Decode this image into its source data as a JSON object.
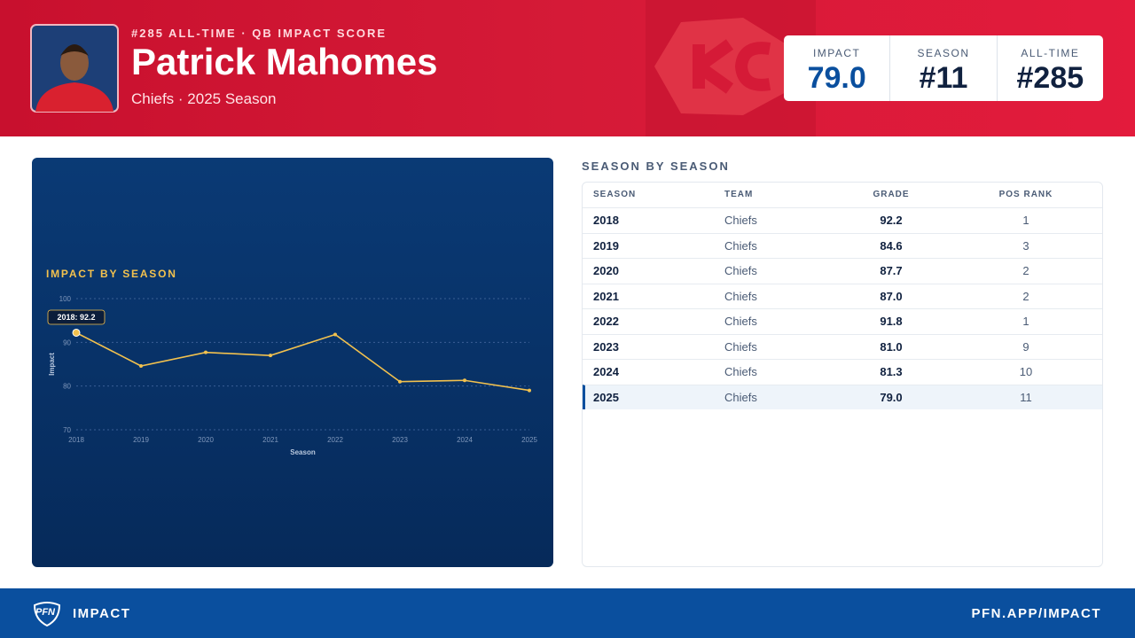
{
  "header": {
    "kicker": "#285 ALL-TIME · QB IMPACT SCORE",
    "name": "Patrick Mahomes",
    "subtitle": "Chiefs · 2025 Season"
  },
  "stats": [
    {
      "label": "IMPACT",
      "value": "79.0"
    },
    {
      "label": "SEASON",
      "value": "#11"
    },
    {
      "label": "ALL-TIME",
      "value": "#285"
    }
  ],
  "chart_data": {
    "type": "line",
    "title": "IMPACT BY SEASON",
    "x_label": "Season",
    "y_label": "Impact",
    "categories": [
      "2018",
      "2019",
      "2020",
      "2021",
      "2022",
      "2023",
      "2024",
      "2025"
    ],
    "values": [
      92.2,
      84.6,
      87.7,
      87.0,
      91.8,
      81.0,
      81.3,
      79.0
    ],
    "color": "#f2c14e",
    "ylim": [
      70,
      100
    ],
    "yticks": [
      70,
      80,
      90,
      100
    ],
    "grid": true,
    "annotation": "2018: 92.2"
  },
  "table": {
    "title": "SEASON BY SEASON",
    "columns": [
      "SEASON",
      "TEAM",
      "GRADE",
      "POS RANK"
    ],
    "rows": [
      [
        "2018",
        "Chiefs",
        "92.2",
        "1"
      ],
      [
        "2019",
        "Chiefs",
        "84.6",
        "3"
      ],
      [
        "2020",
        "Chiefs",
        "87.7",
        "2"
      ],
      [
        "2021",
        "Chiefs",
        "87.0",
        "2"
      ],
      [
        "2022",
        "Chiefs",
        "91.8",
        "1"
      ],
      [
        "2023",
        "Chiefs",
        "81.0",
        "9"
      ],
      [
        "2024",
        "Chiefs",
        "81.3",
        "10"
      ],
      [
        "2025",
        "Chiefs",
        "79.0",
        "11"
      ]
    ]
  },
  "footer": {
    "logo": "PFN",
    "brand": "IMPACT",
    "url": "PFN.APP/IMPACT"
  }
}
